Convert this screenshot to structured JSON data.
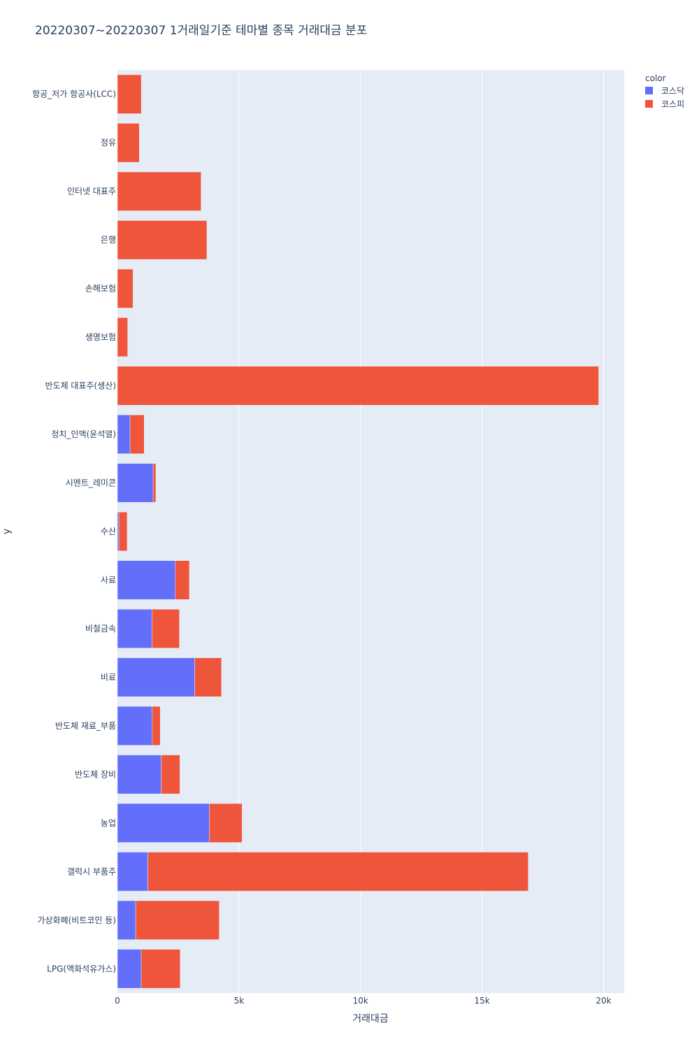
{
  "chart_data": {
    "type": "bar",
    "orientation": "horizontal",
    "barmode": "stack",
    "title": "20220307~20220307 1거래일기준 테마별 종목 거래대금 분포",
    "xlabel": "거래대금",
    "ylabel": "y",
    "xlim": [
      0,
      20850
    ],
    "xticks": [
      0,
      5000,
      10000,
      15000,
      20000
    ],
    "xtick_labels": [
      "0",
      "5k",
      "10k",
      "15k",
      "20k"
    ],
    "grid": true,
    "legend": {
      "title": "color",
      "position": "top-right"
    },
    "categories": [
      "항공_저가 항공사(LCC)",
      "정유",
      "인터넷 대표주",
      "은행",
      "손해보험",
      "생명보험",
      "반도체 대표주(생산)",
      "정치_인맥(윤석열)",
      "시멘트_레미콘",
      "수산",
      "사료",
      "비철금속",
      "비료",
      "반도체 재료_부품",
      "반도체 장비",
      "농업",
      "갤럭시 부품주",
      "가상화폐(비트코인 등)",
      "LPG(액화석유가스)"
    ],
    "series": [
      {
        "name": "코스닥",
        "color": "#636efa",
        "values": [
          0,
          0,
          0,
          0,
          0,
          0,
          0,
          520,
          1470,
          60,
          2380,
          1420,
          3180,
          1430,
          1800,
          3780,
          1250,
          750,
          980
        ]
      },
      {
        "name": "코스피",
        "color": "#ef553b",
        "values": [
          980,
          900,
          3440,
          3680,
          640,
          420,
          19800,
          580,
          110,
          340,
          580,
          1130,
          1100,
          330,
          770,
          1350,
          15650,
          3440,
          1600
        ]
      }
    ]
  }
}
